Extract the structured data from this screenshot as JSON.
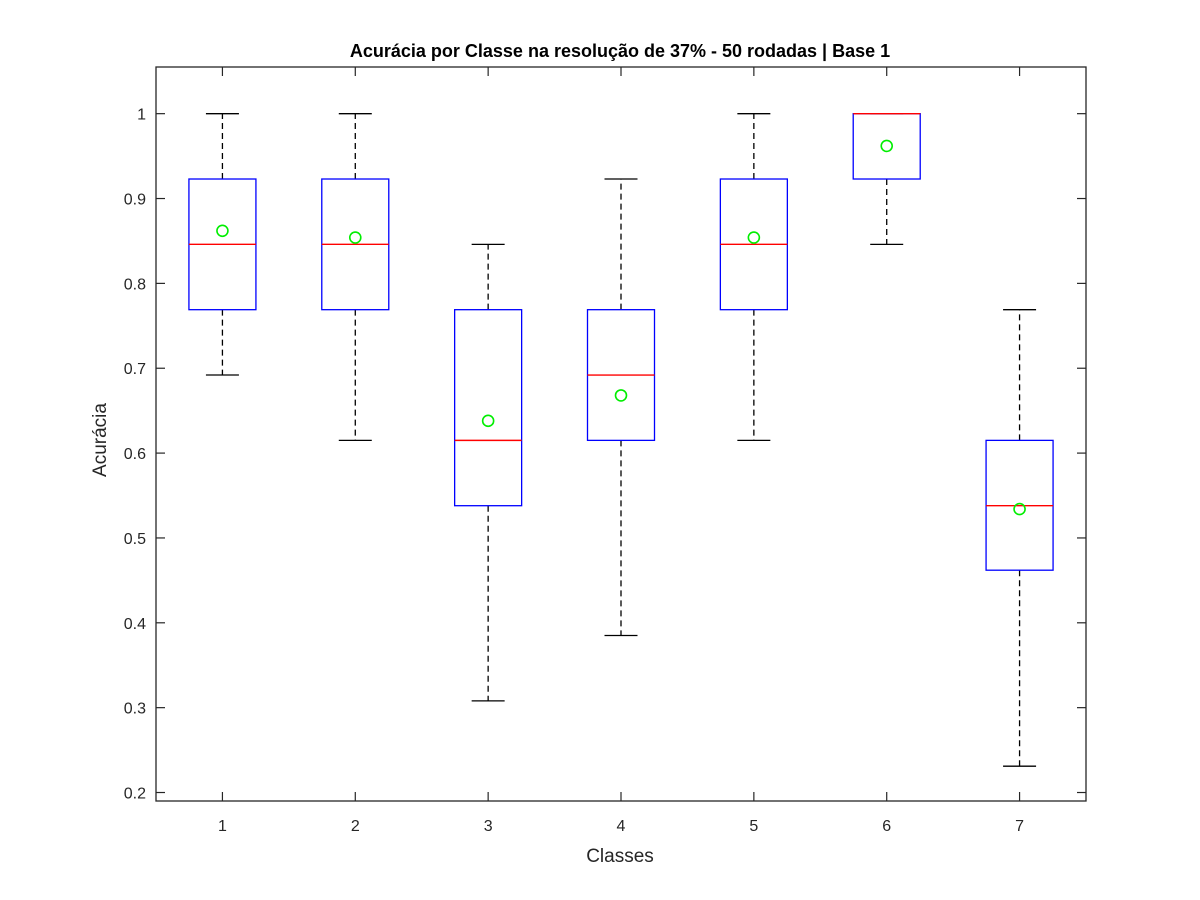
{
  "chart_data": {
    "type": "boxplot",
    "title": "Acurácia por Classe na resolução de 37% - 50 rodadas | Base 1",
    "xlabel": "Classes",
    "ylabel": "Acurácia",
    "ylim": [
      0.19,
      1.055
    ],
    "yticks": [
      0.2,
      0.3,
      0.4,
      0.5,
      0.6,
      0.7,
      0.8,
      0.9,
      1.0
    ],
    "ytick_labels": [
      "0.2",
      "0.3",
      "0.4",
      "0.5",
      "0.6",
      "0.7",
      "0.8",
      "0.9",
      "1"
    ],
    "categories": [
      "1",
      "2",
      "3",
      "4",
      "5",
      "6",
      "7"
    ],
    "boxes": [
      {
        "category": "1",
        "whisker_low": 0.692,
        "q1": 0.769,
        "median": 0.846,
        "q3": 0.923,
        "whisker_high": 1.0,
        "mean": 0.862
      },
      {
        "category": "2",
        "whisker_low": 0.615,
        "q1": 0.769,
        "median": 0.846,
        "q3": 0.923,
        "whisker_high": 1.0,
        "mean": 0.854
      },
      {
        "category": "3",
        "whisker_low": 0.308,
        "q1": 0.538,
        "median": 0.615,
        "q3": 0.769,
        "whisker_high": 0.846,
        "mean": 0.638
      },
      {
        "category": "4",
        "whisker_low": 0.385,
        "q1": 0.615,
        "median": 0.692,
        "q3": 0.769,
        "whisker_high": 0.923,
        "mean": 0.668
      },
      {
        "category": "5",
        "whisker_low": 0.615,
        "q1": 0.769,
        "median": 0.846,
        "q3": 0.923,
        "whisker_high": 1.0,
        "mean": 0.854
      },
      {
        "category": "6",
        "whisker_low": 0.846,
        "q1": 0.923,
        "median": 1.0,
        "q3": 1.0,
        "whisker_high": 1.0,
        "mean": 0.962
      },
      {
        "category": "7",
        "whisker_low": 0.231,
        "q1": 0.462,
        "median": 0.538,
        "q3": 0.615,
        "whisker_high": 0.769,
        "mean": 0.534
      }
    ],
    "colors": {
      "box": "#0000ff",
      "median": "#ff0000",
      "mean_marker": "#00ee00",
      "whisker": "#000000",
      "axis": "#262626"
    },
    "grid": false,
    "legend": "none"
  }
}
